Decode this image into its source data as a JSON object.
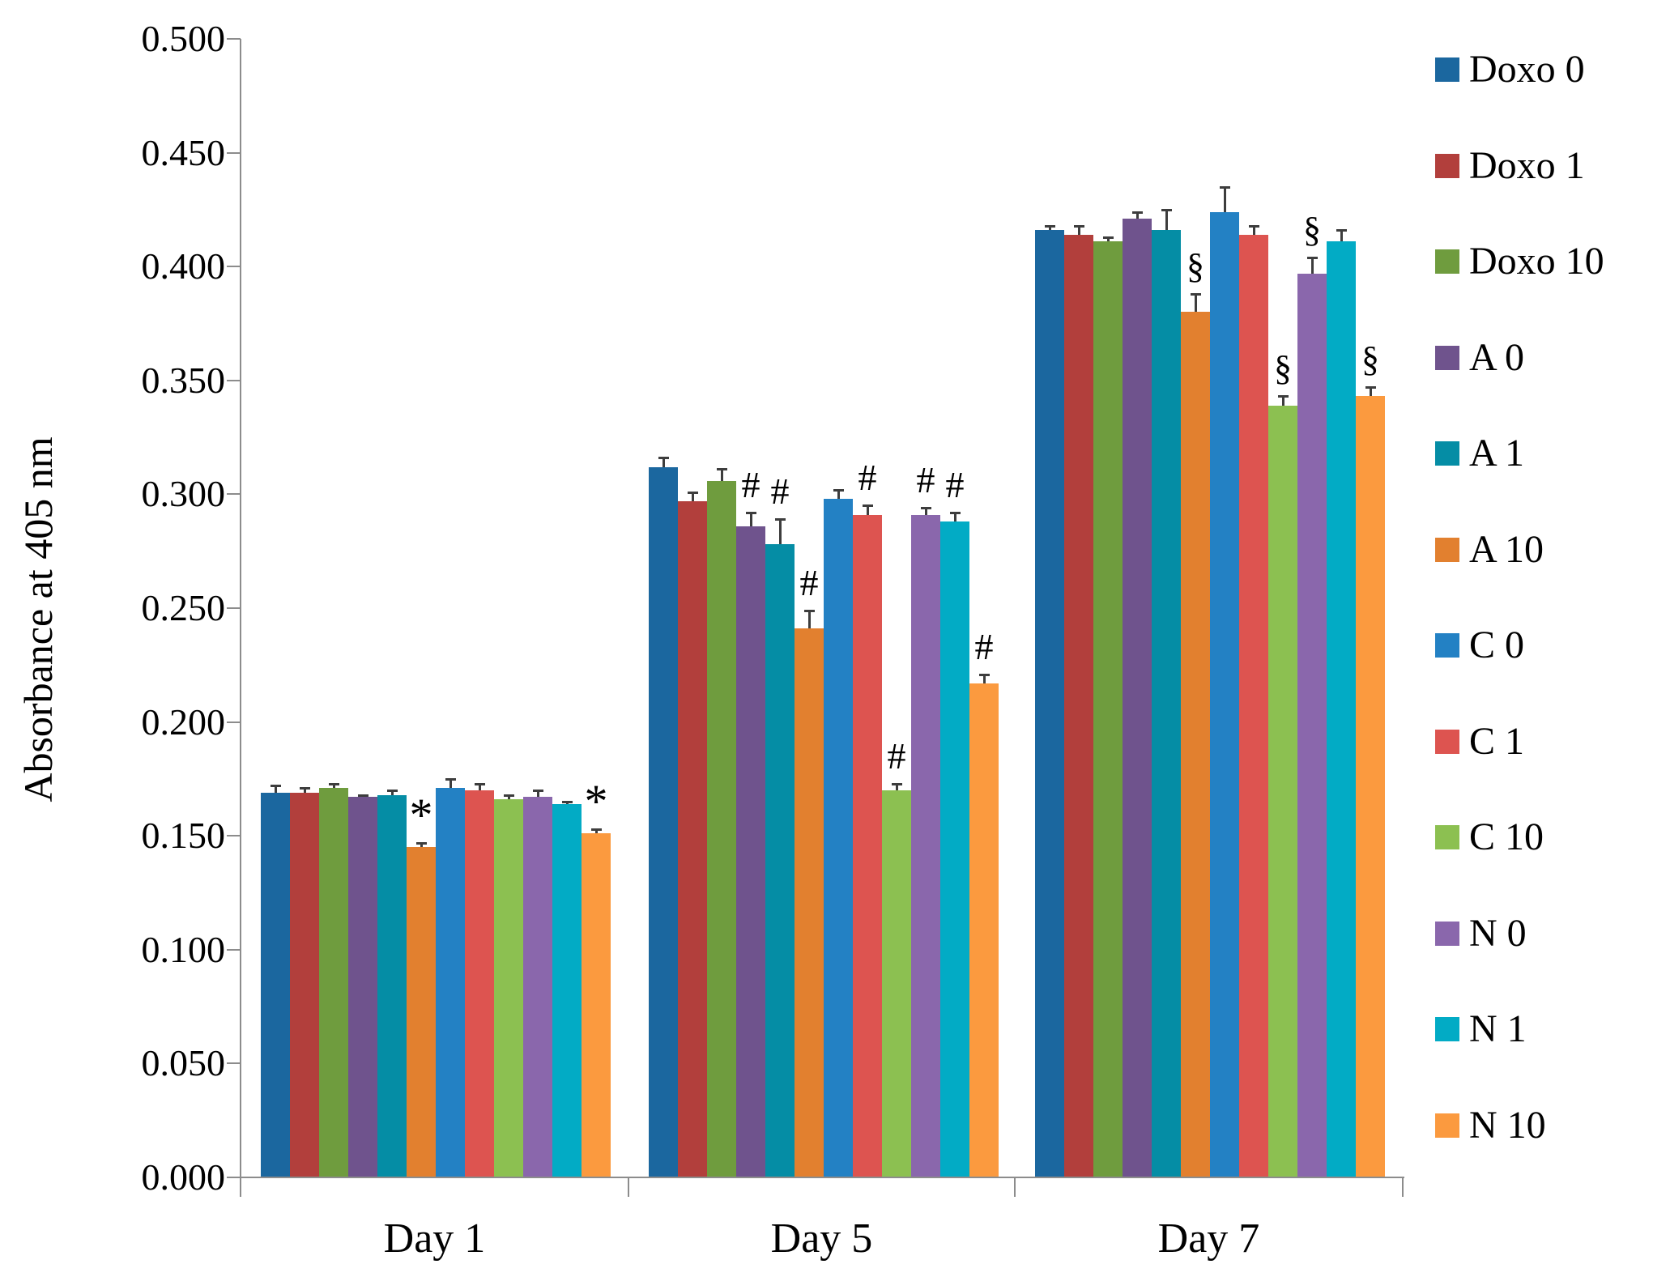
{
  "chart_data": {
    "type": "bar",
    "title": "",
    "ylabel": "Absorbance at 405 nm",
    "xlabel": "",
    "categories": [
      "Day 1",
      "Day 5",
      "Day 7"
    ],
    "ylim": [
      0.0,
      0.5
    ],
    "y_tick_step": 0.05,
    "y_tick_labels": [
      "0.000",
      "0.050",
      "0.100",
      "0.150",
      "0.200",
      "0.250",
      "0.300",
      "0.350",
      "0.400",
      "0.450",
      "0.500"
    ],
    "grid": false,
    "legend_position": "right",
    "error_bars": true,
    "annotation_symbols": [
      "*",
      "#",
      "§"
    ],
    "series": [
      {
        "name": "Doxo 0",
        "color": "#1B679F",
        "values": [
          0.169,
          0.312,
          0.416
        ],
        "errors": [
          0.003,
          0.004,
          0.002
        ],
        "annotations": [
          "",
          "",
          ""
        ]
      },
      {
        "name": "Doxo 1",
        "color": "#B23F3C",
        "values": [
          0.169,
          0.297,
          0.414
        ],
        "errors": [
          0.002,
          0.004,
          0.004
        ],
        "annotations": [
          "",
          "",
          ""
        ]
      },
      {
        "name": "Doxo 10",
        "color": "#6F9C3E",
        "values": [
          0.171,
          0.306,
          0.411
        ],
        "errors": [
          0.002,
          0.005,
          0.002
        ],
        "annotations": [
          "",
          "",
          ""
        ]
      },
      {
        "name": "A 0",
        "color": "#6F538D",
        "values": [
          0.167,
          0.286,
          0.421
        ],
        "errors": [
          0.001,
          0.006,
          0.003
        ],
        "annotations": [
          "",
          "#",
          ""
        ]
      },
      {
        "name": "A 1",
        "color": "#058DA5",
        "values": [
          0.168,
          0.278,
          0.416
        ],
        "errors": [
          0.002,
          0.011,
          0.009
        ],
        "annotations": [
          "",
          "#",
          ""
        ]
      },
      {
        "name": "A 10",
        "color": "#E2802F",
        "values": [
          0.145,
          0.241,
          0.38
        ],
        "errors": [
          0.002,
          0.008,
          0.008
        ],
        "annotations": [
          "*",
          "#",
          "§"
        ]
      },
      {
        "name": "C 0",
        "color": "#2381C4",
        "values": [
          0.171,
          0.298,
          0.424
        ],
        "errors": [
          0.004,
          0.004,
          0.011
        ],
        "annotations": [
          "",
          "",
          ""
        ]
      },
      {
        "name": "C 1",
        "color": "#DD5450",
        "values": [
          0.17,
          0.291,
          0.414
        ],
        "errors": [
          0.003,
          0.004,
          0.004
        ],
        "annotations": [
          "",
          "#",
          ""
        ]
      },
      {
        "name": "C 10",
        "color": "#8CC051",
        "values": [
          0.166,
          0.17,
          0.339
        ],
        "errors": [
          0.002,
          0.003,
          0.004
        ],
        "annotations": [
          "",
          "#",
          "§"
        ]
      },
      {
        "name": "N 0",
        "color": "#8A67AC",
        "values": [
          0.167,
          0.291,
          0.397
        ],
        "errors": [
          0.003,
          0.003,
          0.007
        ],
        "annotations": [
          "",
          "#",
          "§"
        ]
      },
      {
        "name": "N 1",
        "color": "#02ABC5",
        "values": [
          0.164,
          0.288,
          0.411
        ],
        "errors": [
          0.001,
          0.004,
          0.005
        ],
        "annotations": [
          "",
          "#",
          ""
        ]
      },
      {
        "name": "N 10",
        "color": "#FB9A3F",
        "values": [
          0.151,
          0.217,
          0.343
        ],
        "errors": [
          0.002,
          0.004,
          0.004
        ],
        "annotations": [
          "*",
          "#",
          "§"
        ]
      }
    ]
  }
}
